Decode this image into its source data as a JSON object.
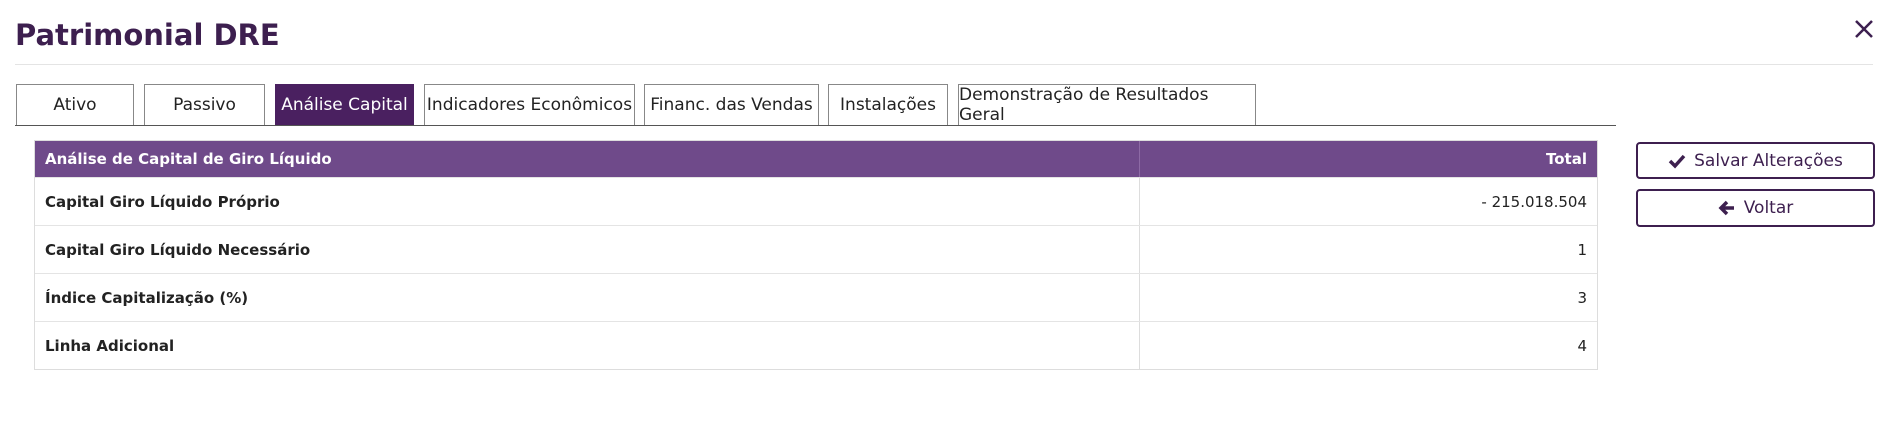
{
  "header": {
    "title": "Patrimonial DRE"
  },
  "tabs": [
    "Ativo",
    "Passivo",
    "Análise Capital",
    "Indicadores Econômicos",
    "Financ. das Vendas",
    "Instalações",
    "Demonstração de Resultados Geral"
  ],
  "active_tab": 2,
  "table": {
    "columns": [
      "Análise de Capital de Giro Líquido",
      "Total"
    ],
    "rows": [
      [
        "Capital Giro Líquido Próprio",
        "- 215.018.504"
      ],
      [
        "Capital Giro Líquido Necessário",
        "1"
      ],
      [
        "Índice Capitalização (%)",
        "3"
      ],
      [
        "Linha Adicional",
        "4"
      ]
    ]
  },
  "buttons": [
    "Salvar Alterações",
    "Voltar"
  ]
}
